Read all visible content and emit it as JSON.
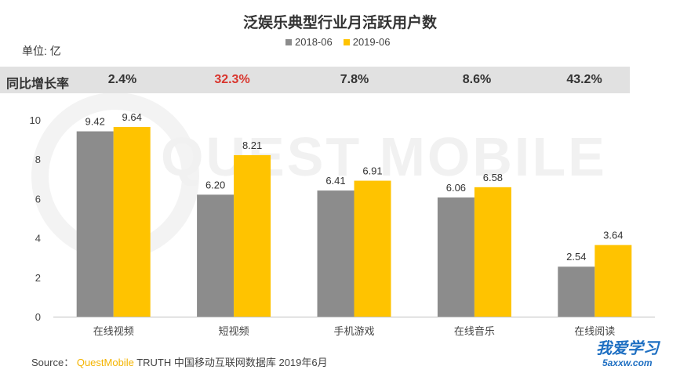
{
  "title": "泛娱乐典型行业月活跃用户数",
  "unit_label": "单位: 亿",
  "legend": [
    {
      "name": "2018-06",
      "color": "#8c8c8c"
    },
    {
      "name": "2019-06",
      "color": "#ffc300"
    }
  ],
  "growth_row": {
    "label": "同比增长率",
    "values": [
      "2.4%",
      "32.3%",
      "7.8%",
      "8.6%",
      "43.2%"
    ],
    "highlight_index": 1,
    "highlight_color": "#d9372f"
  },
  "chart_data": {
    "type": "bar",
    "categories": [
      "在线视频",
      "短视频",
      "手机游戏",
      "在线音乐",
      "在线阅读"
    ],
    "series": [
      {
        "name": "2018-06",
        "color": "#8c8c8c",
        "values": [
          9.42,
          6.2,
          6.41,
          6.06,
          2.54
        ]
      },
      {
        "name": "2019-06",
        "color": "#ffc300",
        "values": [
          9.64,
          8.21,
          6.91,
          6.58,
          3.64
        ]
      }
    ],
    "value_labels": [
      [
        "9.42",
        "6.20",
        "6.41",
        "6.06",
        "2.54"
      ],
      [
        "9.64",
        "8.21",
        "6.91",
        "6.58",
        "3.64"
      ]
    ],
    "ylim": [
      0,
      10
    ],
    "yticks": [
      "0",
      "2",
      "4",
      "6",
      "8",
      "10"
    ],
    "grid": false,
    "legend_position": "top"
  },
  "watermark": "QUEST MOBILE",
  "source": {
    "prefix": "Source：",
    "brand": "QuestMobile",
    "rest": " TRUTH 中国移动互联网数据库 2019年6月"
  },
  "corner_logo": {
    "cn": "我爱学习",
    "en": "5axxw.com"
  }
}
